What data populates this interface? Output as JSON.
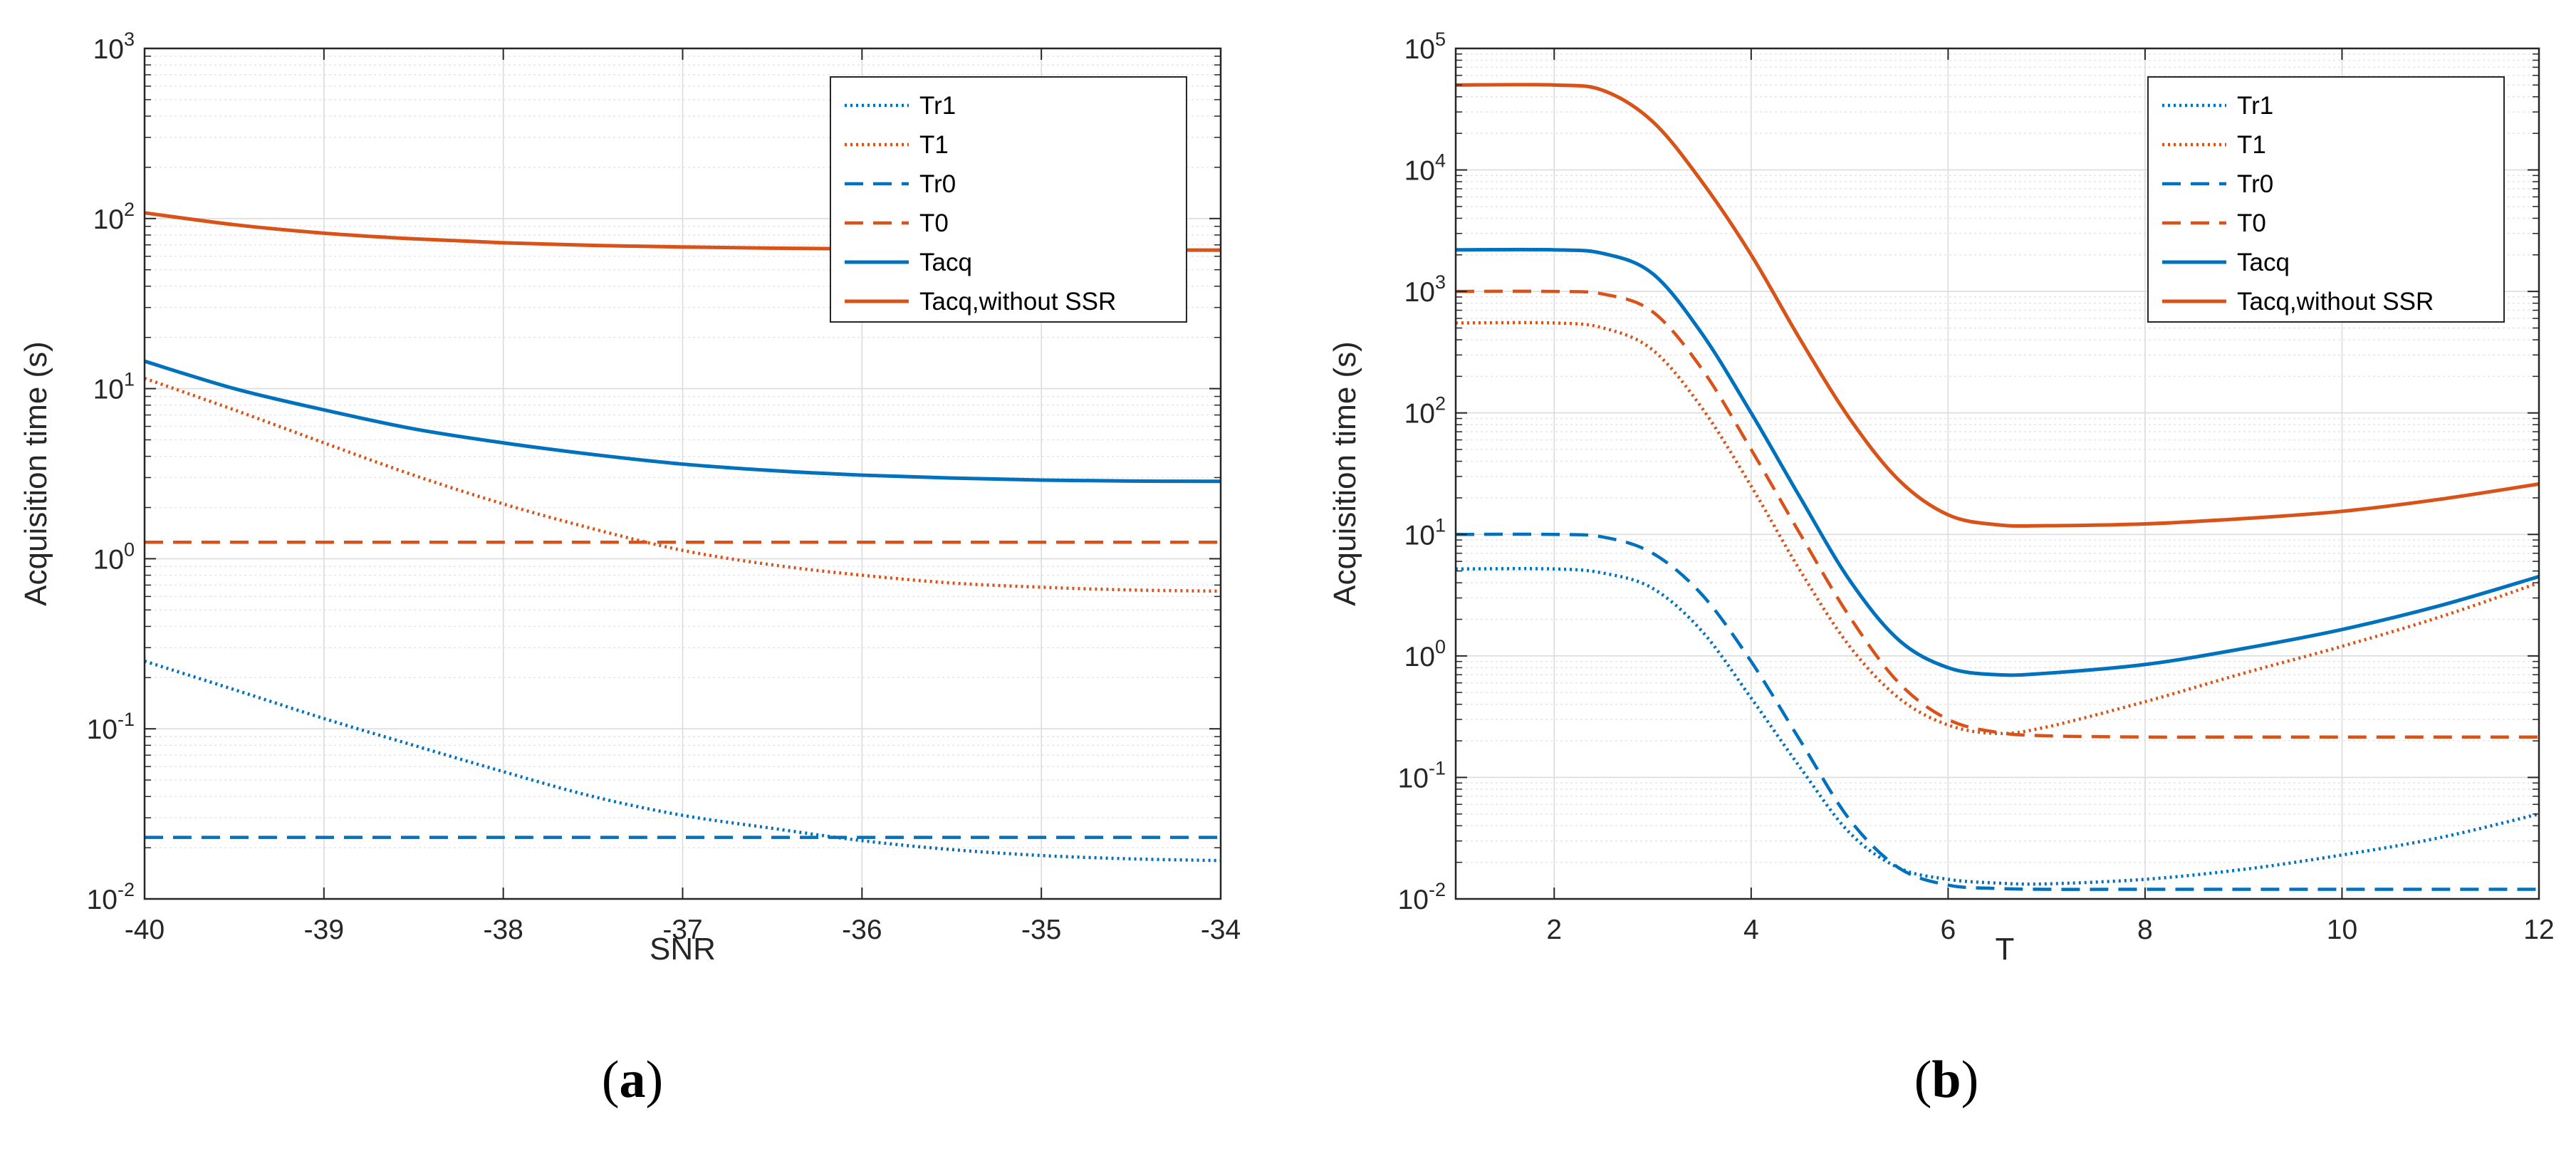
{
  "colors": {
    "blue": "#0072BD",
    "orange": "#D95319"
  },
  "panels": [
    {
      "label_open": "(",
      "label_letter": "a",
      "label_close": ")",
      "chart_data": {
        "type": "line",
        "yscale": "log",
        "xlabel": "SNR",
        "ylabel": "Acquisition time (s)",
        "xlim": [
          -40,
          -34
        ],
        "ylim": [
          0.01,
          1000
        ],
        "grid": true,
        "legend_position": "top-right",
        "x_ticks": [
          -40,
          -39,
          -38,
          -37,
          -36,
          -35,
          -34
        ],
        "x_tick_labels": [
          "-40",
          "-39",
          "-38",
          "-37",
          "-36",
          "-35",
          "-34"
        ],
        "y_tick_exponents": [
          "-2",
          "-1",
          "0",
          "1",
          "2",
          "3"
        ],
        "series": [
          {
            "name": "Tr1",
            "color": "blue",
            "style": "dotted",
            "x": [
              -40,
              -39.5,
              -39,
              -38.5,
              -38,
              -37.5,
              -37,
              -36.5,
              -36,
              -35.5,
              -35,
              -34.5,
              -34
            ],
            "y": [
              0.25,
              0.17,
              0.115,
              0.08,
              0.056,
              0.04,
              0.031,
              0.026,
              0.022,
              0.0195,
              0.018,
              0.0172,
              0.0168
            ]
          },
          {
            "name": "T1",
            "color": "orange",
            "style": "dotted",
            "x": [
              -40,
              -39.5,
              -39,
              -38.5,
              -38,
              -37.5,
              -37,
              -36.5,
              -36,
              -35.5,
              -35,
              -34.5,
              -34
            ],
            "y": [
              11.5,
              7.5,
              4.8,
              3.1,
              2.1,
              1.5,
              1.12,
              0.92,
              0.8,
              0.72,
              0.68,
              0.655,
              0.645
            ]
          },
          {
            "name": "Tr0",
            "color": "blue",
            "style": "dashed",
            "x": [
              -40,
              -34
            ],
            "y": [
              0.023,
              0.023
            ]
          },
          {
            "name": "T0",
            "color": "orange",
            "style": "dashed",
            "x": [
              -40,
              -34
            ],
            "y": [
              1.25,
              1.25
            ]
          },
          {
            "name": "Tacq",
            "color": "blue",
            "style": "solid",
            "x": [
              -40,
              -39.5,
              -39,
              -38.5,
              -38,
              -37.5,
              -37,
              -36.5,
              -36,
              -35.5,
              -35,
              -34.5,
              -34
            ],
            "y": [
              14.5,
              10,
              7.5,
              5.8,
              4.8,
              4.1,
              3.6,
              3.3,
              3.1,
              2.98,
              2.9,
              2.86,
              2.85
            ]
          },
          {
            "name": "Tacq,without SSR",
            "color": "orange",
            "style": "solid",
            "x": [
              -40,
              -39.5,
              -39,
              -38.5,
              -38,
              -37.5,
              -37,
              -36.5,
              -36,
              -35.5,
              -35,
              -34.5,
              -34
            ],
            "y": [
              108,
              92,
              82,
              76,
              72,
              69.5,
              68,
              67,
              66.3,
              65.8,
              65.5,
              65.3,
              65.2
            ]
          }
        ]
      }
    },
    {
      "label_open": "(",
      "label_letter": "b",
      "label_close": ")",
      "chart_data": {
        "type": "line",
        "yscale": "log",
        "xlabel": "T",
        "ylabel": "Acquisition time (s)",
        "xlim": [
          1,
          12
        ],
        "ylim": [
          0.01,
          100000
        ],
        "grid": true,
        "legend_position": "top-right",
        "x_ticks": [
          2,
          4,
          6,
          8,
          10,
          12
        ],
        "x_tick_labels": [
          "2",
          "4",
          "6",
          "8",
          "10",
          "12"
        ],
        "y_tick_exponents": [
          "-2",
          "-1",
          "0",
          "1",
          "2",
          "3",
          "4",
          "5"
        ],
        "series": [
          {
            "name": "Tr1",
            "color": "blue",
            "style": "dotted",
            "x": [
              1,
              2,
              2.5,
              3,
              3.5,
              4,
              4.5,
              5,
              5.5,
              6,
              6.5,
              7,
              8,
              9,
              10,
              11,
              12
            ],
            "y": [
              5.2,
              5.2,
              4.8,
              3.6,
              1.6,
              0.45,
              0.12,
              0.035,
              0.018,
              0.0145,
              0.0135,
              0.0133,
              0.0145,
              0.0175,
              0.023,
              0.032,
              0.05
            ]
          },
          {
            "name": "T1",
            "color": "orange",
            "style": "dotted",
            "x": [
              1,
              2,
              2.5,
              3,
              3.5,
              4,
              4.5,
              5,
              5.5,
              6,
              6.5,
              7,
              8,
              9,
              10,
              11,
              12
            ],
            "y": [
              550,
              550,
              500,
              330,
              110,
              25,
              5,
              1.2,
              0.45,
              0.27,
              0.23,
              0.26,
              0.42,
              0.72,
              1.2,
              2.1,
              4
            ]
          },
          {
            "name": "Tr0",
            "color": "blue",
            "style": "dashed",
            "x": [
              1,
              2,
              2.5,
              3,
              3.5,
              4,
              4.5,
              5,
              5.5,
              6,
              6.5,
              7,
              8,
              9,
              10,
              11,
              12
            ],
            "y": [
              10,
              10,
              9.5,
              7,
              3.2,
              0.9,
              0.2,
              0.045,
              0.018,
              0.013,
              0.0122,
              0.012,
              0.012,
              0.012,
              0.012,
              0.012,
              0.012
            ]
          },
          {
            "name": "T0",
            "color": "orange",
            "style": "dashed",
            "x": [
              1,
              2,
              2.5,
              3,
              3.5,
              4,
              4.5,
              5,
              5.5,
              6,
              6.5,
              7,
              8,
              9,
              10,
              11,
              12
            ],
            "y": [
              1000,
              1000,
              950,
              680,
              230,
              50,
              10,
              2.1,
              0.6,
              0.3,
              0.235,
              0.22,
              0.215,
              0.215,
              0.215,
              0.215,
              0.215
            ]
          },
          {
            "name": "Tacq",
            "color": "blue",
            "style": "solid",
            "x": [
              1,
              2,
              2.5,
              3,
              3.5,
              4,
              4.5,
              5,
              5.5,
              6,
              6.5,
              7,
              8,
              9,
              10,
              11,
              12
            ],
            "y": [
              2200,
              2200,
              2050,
              1400,
              450,
              100,
              20,
              4.2,
              1.35,
              0.8,
              0.7,
              0.72,
              0.85,
              1.15,
              1.65,
              2.6,
              4.5
            ]
          },
          {
            "name": "Tacq,without SSR",
            "color": "orange",
            "style": "solid",
            "x": [
              1,
              2,
              2.5,
              3,
              3.5,
              4,
              4.5,
              5,
              5.5,
              6,
              6.5,
              7,
              8,
              9,
              10,
              11,
              12
            ],
            "y": [
              50000,
              50000,
              45000,
              25000,
              8000,
              2000,
              400,
              90,
              28,
              14.5,
              12,
              11.8,
              12.2,
              13.5,
              15.5,
              19.5,
              26
            ]
          }
        ]
      }
    }
  ]
}
